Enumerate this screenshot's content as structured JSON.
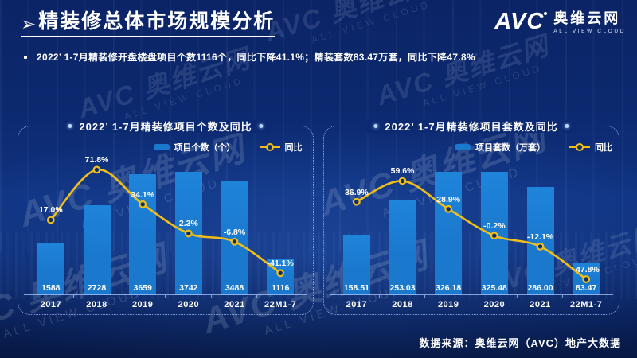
{
  "page": {
    "title": "精装修总体市场规模分析",
    "bullet": "2022’ 1-7月精装修开盘楼盘项目个数1116个，同比下降41.1%；精装套数83.47万套，同比下降47.8%",
    "footer": "数据来源：奥维云网（AVC）地产大数据"
  },
  "logo": {
    "abbr": "AVC",
    "name": "奥维云网",
    "tagline": "ALL VIEW CLOUD"
  },
  "watermark": {
    "brand": "AVC",
    "name": "奥维云网",
    "tagline": "ALL VIEW CLOUD"
  },
  "colors": {
    "bar": "#1a78cd",
    "line": "#f0be19",
    "marker_fill": "#0e2f6e",
    "panel_border": "rgba(158,192,255,0.85)",
    "text": "#ffffff"
  },
  "chart_data": [
    {
      "type": "bar",
      "subtype": "combo-bar-line",
      "title": "2022’ 1-7月精装修项目个数及同比",
      "categories": [
        "2017",
        "2018",
        "2019",
        "2020",
        "2021",
        "22M1-7"
      ],
      "series": [
        {
          "name": "项目个数（个）",
          "type": "bar",
          "values": [
            1588,
            2728,
            3659,
            3742,
            3488,
            1116
          ],
          "labels": [
            "1588",
            "2728",
            "3659",
            "3742",
            "3488",
            "1116"
          ]
        },
        {
          "name": "同比",
          "type": "line",
          "unit": "%",
          "values": [
            17.0,
            71.8,
            34.1,
            2.3,
            -6.8,
            -41.1
          ],
          "labels": [
            "17.0%",
            "71.8%",
            "34.1%",
            "2.3%",
            "-6.8%",
            "-41.1%"
          ]
        }
      ],
      "legend_position": "top-right",
      "grid": false,
      "ylim_bars": [
        0,
        4200
      ],
      "ylim_line_pct": [
        -60,
        90
      ]
    },
    {
      "type": "bar",
      "subtype": "combo-bar-line",
      "title": "2022’ 1-7月精装修项目套数及同比",
      "categories": [
        "2017",
        "2018",
        "2019",
        "2020",
        "2021",
        "22M1-7"
      ],
      "series": [
        {
          "name": "项目套数（万套）",
          "type": "bar",
          "values": [
            158.51,
            253.03,
            326.18,
            325.48,
            286.0,
            83.47
          ],
          "labels": [
            "158.51",
            "253.03",
            "326.18",
            "325.48",
            "286.00",
            "83.47"
          ]
        },
        {
          "name": "同比",
          "type": "line",
          "unit": "%",
          "values": [
            36.9,
            59.6,
            28.9,
            -0.2,
            -12.1,
            -47.8
          ],
          "labels": [
            "36.9%",
            "59.6%",
            "28.9%",
            "-0.2%",
            "-12.1%",
            "-47.8%"
          ]
        }
      ],
      "legend_position": "top-right",
      "grid": false,
      "ylim_bars": [
        0,
        360
      ],
      "ylim_line_pct": [
        -60,
        70
      ]
    }
  ]
}
